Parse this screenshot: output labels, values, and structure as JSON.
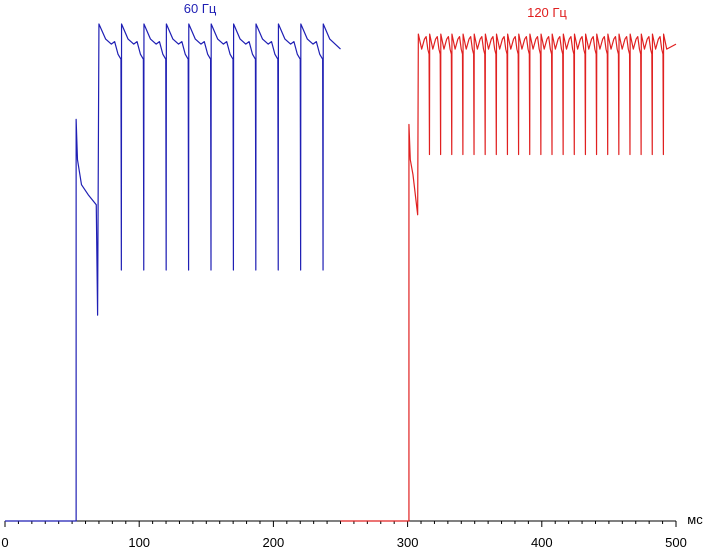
{
  "chart_data": {
    "type": "line",
    "x_unit": "мс",
    "xlim": [
      0,
      500
    ],
    "x_ticks": [
      0,
      100,
      200,
      300,
      400,
      500
    ],
    "grid": false,
    "series": [
      {
        "name": "60 Гц",
        "color": "#1f1fb4",
        "x_start": 0,
        "x_end": 250,
        "baseline_end": 53,
        "rise_time": 53,
        "rise_peak": 0.8,
        "first_drop_time": 69,
        "first_drop_level": 0.41,
        "first_recovery_time": 70,
        "period": 16.7,
        "pulses": 10,
        "pulse_peak": 0.99,
        "pulse_trough": 0.93,
        "dip_level": 0.5
      },
      {
        "name": "120 Гц",
        "color": "#e02020",
        "x_start": 250,
        "x_end": 500,
        "baseline_end": 301,
        "rise_time": 301,
        "rise_peak": 0.79,
        "first_drop_level": 0.61,
        "first_recovery_time": 308,
        "period": 8.3,
        "pulses": 22,
        "pulse_peak": 0.97,
        "pulse_trough": 0.94,
        "dip_level": 0.73
      }
    ]
  }
}
